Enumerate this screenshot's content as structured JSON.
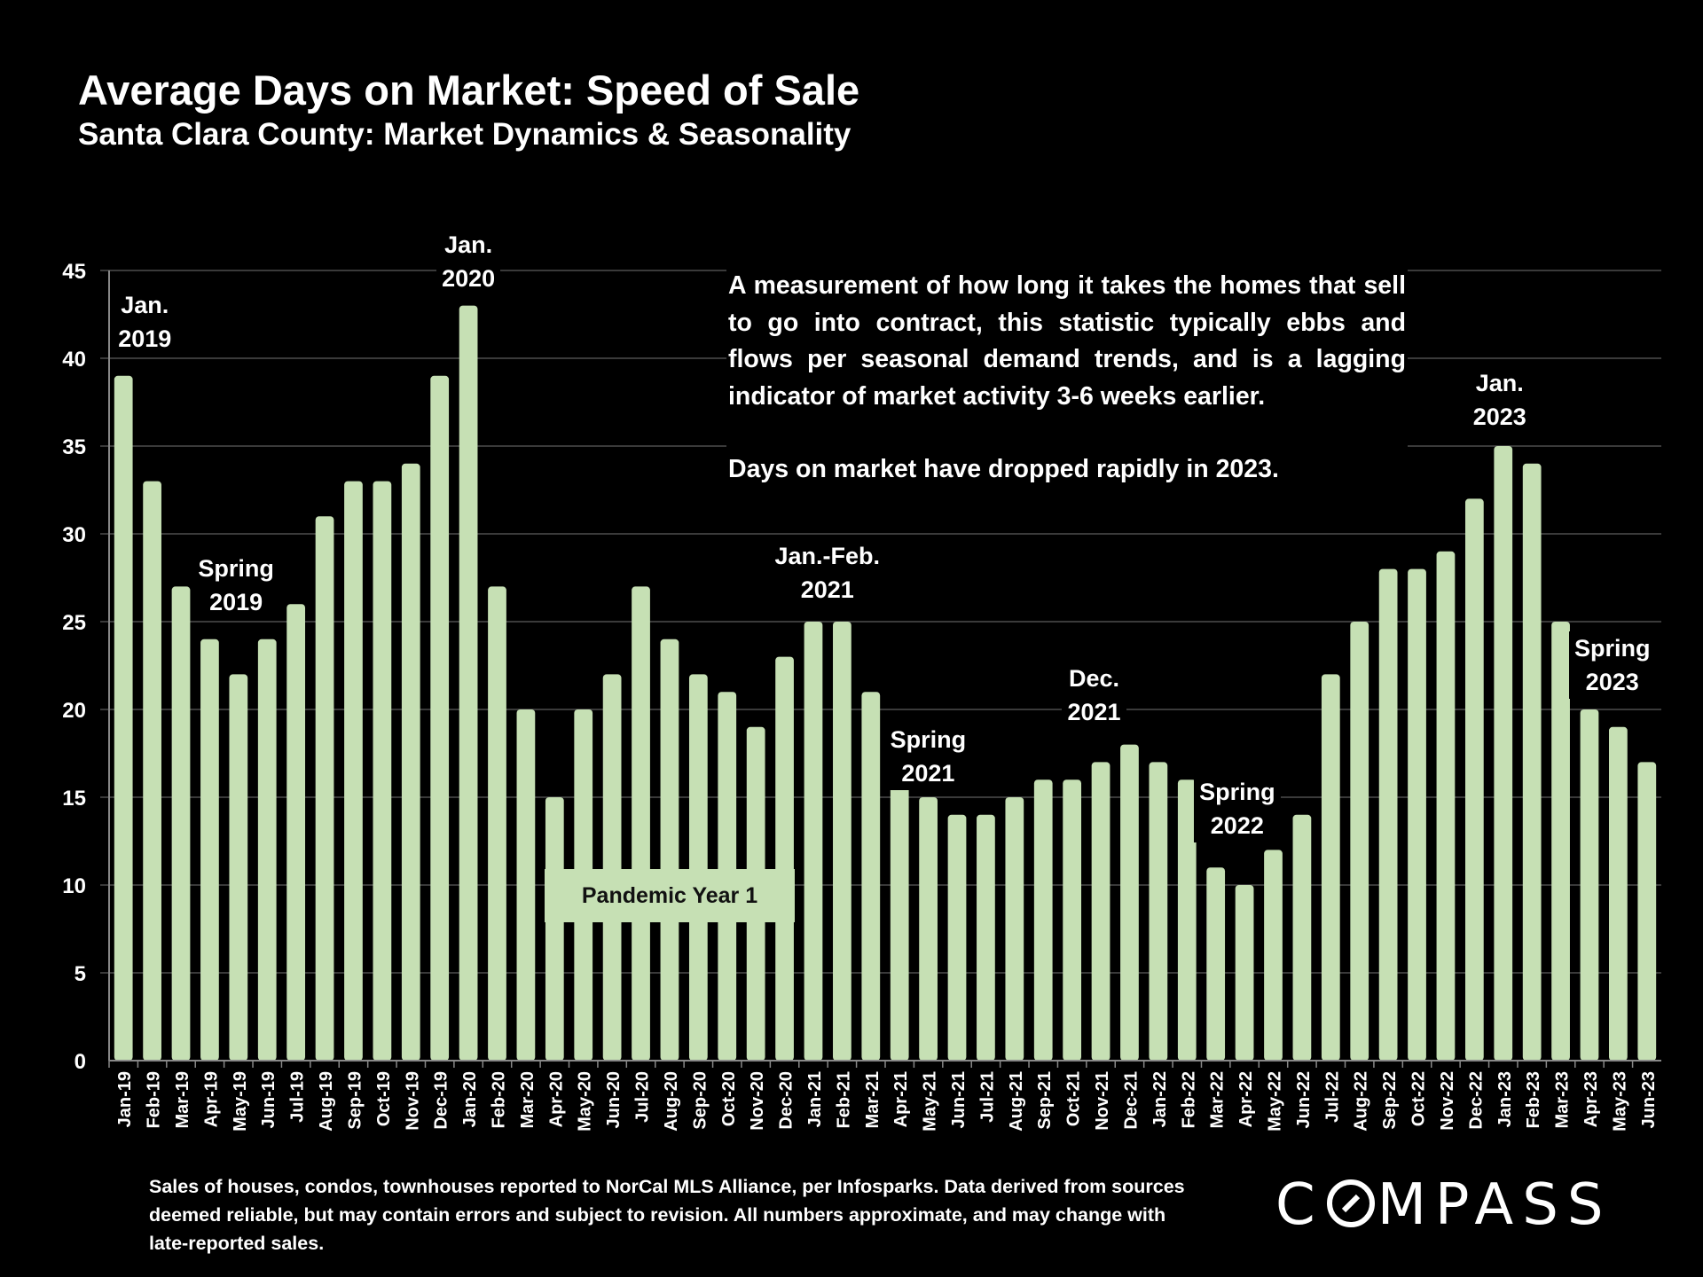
{
  "header": {
    "title": "Average Days on Market: Speed of Sale",
    "subtitle": "Santa Clara County: Market Dynamics & Seasonality"
  },
  "description": {
    "paragraph1": "A measurement of how long it takes the homes that sell to go into contract, this statistic typically ebbs and flows per seasonal demand trends, and is a lagging indicator of market activity 3-6 weeks earlier.",
    "paragraph2": "Days on market have dropped rapidly in 2023."
  },
  "annotations": [
    {
      "line1": "Jan.",
      "line2": "2019",
      "category": "Jan-19"
    },
    {
      "line1": "Spring",
      "line2": "2019",
      "category": "Apr-19"
    },
    {
      "line1": "Jan.",
      "line2": "2020",
      "category": "Jan-20"
    },
    {
      "line1": "Jan.-Feb.",
      "line2": "2021",
      "category": "Jan-21"
    },
    {
      "line1": "Spring",
      "line2": "2021",
      "category": "May-21"
    },
    {
      "line1": "Dec.",
      "line2": "2021",
      "category": "Dec-21"
    },
    {
      "line1": "Spring",
      "line2": "2022",
      "category": "Apr-22"
    },
    {
      "line1": "Jan.",
      "line2": "2023",
      "category": "Jan-23"
    },
    {
      "line1": "Spring",
      "line2": "2023",
      "category": "Apr-23"
    }
  ],
  "pandemic_label": "Pandemic Year 1",
  "footer": {
    "disclaimer": "Sales of houses, condos, townhouses reported to NorCal MLS Alliance, per Infosparks. Data derived from sources deemed reliable, but may contain errors and subject to revision. All numbers approximate, and may change with late-reported sales."
  },
  "logo": {
    "text_before": "C",
    "text_o": "O",
    "text_after": "MPASS"
  },
  "colors": {
    "bar": "#c6e0b4",
    "background": "#000000",
    "grid": "#3a3a3a",
    "text": "#ffffff"
  },
  "chart_data": {
    "type": "bar",
    "title": "Average Days on Market: Speed of Sale",
    "subtitle": "Santa Clara County: Market Dynamics & Seasonality",
    "xlabel": "",
    "ylabel": "",
    "ylim": [
      0,
      45
    ],
    "yticks": [
      0,
      5,
      10,
      15,
      20,
      25,
      30,
      35,
      40,
      45
    ],
    "grid": true,
    "categories": [
      "Jan-19",
      "Feb-19",
      "Mar-19",
      "Apr-19",
      "May-19",
      "Jun-19",
      "Jul-19",
      "Aug-19",
      "Sep-19",
      "Oct-19",
      "Nov-19",
      "Dec-19",
      "Jan-20",
      "Feb-20",
      "Mar-20",
      "Apr-20",
      "May-20",
      "Jun-20",
      "Jul-20",
      "Aug-20",
      "Sep-20",
      "Oct-20",
      "Nov-20",
      "Dec-20",
      "Jan-21",
      "Feb-21",
      "Mar-21",
      "Apr-21",
      "May-21",
      "Jun-21",
      "Jul-21",
      "Aug-21",
      "Sep-21",
      "Oct-21",
      "Nov-21",
      "Dec-21",
      "Jan-22",
      "Feb-22",
      "Mar-22",
      "Apr-22",
      "May-22",
      "Jun-22",
      "Jul-22",
      "Aug-22",
      "Sep-22",
      "Oct-22",
      "Nov-22",
      "Dec-22",
      "Jan-23",
      "Feb-23",
      "Mar-23",
      "Apr-23",
      "May-23",
      "Jun-23"
    ],
    "values": [
      39,
      33,
      27,
      24,
      22,
      24,
      26,
      31,
      33,
      33,
      34,
      39,
      43,
      27,
      20,
      15,
      20,
      22,
      27,
      24,
      22,
      21,
      19,
      23,
      25,
      25,
      21,
      17,
      15,
      14,
      14,
      15,
      16,
      16,
      17,
      18,
      17,
      16,
      11,
      10,
      12,
      14,
      22,
      25,
      28,
      28,
      29,
      32,
      35,
      34,
      25,
      20,
      19,
      17
    ]
  }
}
